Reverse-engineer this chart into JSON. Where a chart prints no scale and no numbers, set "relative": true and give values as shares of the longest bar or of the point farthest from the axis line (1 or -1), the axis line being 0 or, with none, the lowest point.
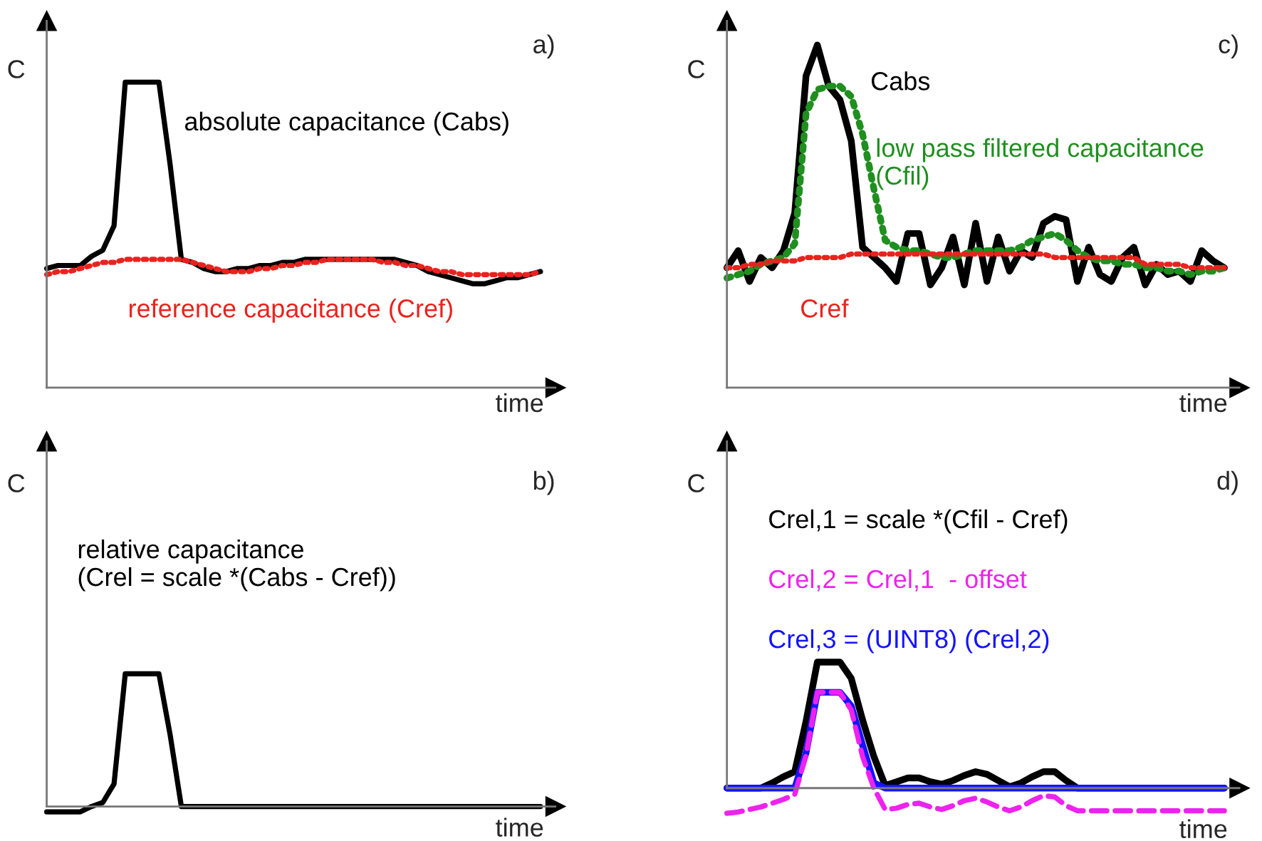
{
  "chart_data": [
    {
      "type": "line",
      "title": "a)",
      "xlabel": "time",
      "ylabel": "C",
      "relative": true,
      "tick_labels": false,
      "categories": [
        null,
        null,
        null,
        null,
        null,
        null,
        null,
        null,
        null,
        null,
        null,
        null,
        null,
        null,
        null,
        null,
        null,
        null,
        null,
        null,
        null,
        null,
        null,
        null,
        null,
        null,
        null,
        null,
        null,
        null,
        null,
        null,
        null,
        null,
        null,
        null,
        null,
        null,
        null,
        null,
        null,
        null,
        null,
        null,
        null
      ],
      "series": [
        {
          "name": "absolute capacitance (Cabs)",
          "color": "#000000",
          "line_style": "solid",
          "values": [
            0.39,
            0.4,
            0.4,
            0.4,
            0.43,
            0.45,
            0.53,
            1,
            1,
            1,
            1,
            0.73,
            0.42,
            0.41,
            0.39,
            0.38,
            0.38,
            0.39,
            0.39,
            0.4,
            0.4,
            0.41,
            0.41,
            0.42,
            0.42,
            0.42,
            0.42,
            0.42,
            0.42,
            0.42,
            0.42,
            0.42,
            0.41,
            0.4,
            0.38,
            0.37,
            0.36,
            0.35,
            0.34,
            0.34,
            0.35,
            0.36,
            0.36,
            0.37,
            0.38
          ]
        },
        {
          "name": "reference capacitance (Cref)",
          "color": "#e8231e",
          "line_style": "dotted",
          "values": [
            0.37,
            0.38,
            0.38,
            0.39,
            0.4,
            0.41,
            0.41,
            0.42,
            0.42,
            0.42,
            0.42,
            0.42,
            0.42,
            0.41,
            0.4,
            0.39,
            0.38,
            0.38,
            0.38,
            0.39,
            0.39,
            0.4,
            0.4,
            0.41,
            0.41,
            0.42,
            0.42,
            0.42,
            0.42,
            0.42,
            0.41,
            0.41,
            0.4,
            0.4,
            0.39,
            0.38,
            0.38,
            0.37,
            0.37,
            0.37,
            0.37,
            0.37,
            0.37,
            0.37,
            0.38
          ]
        }
      ]
    },
    {
      "type": "line",
      "title": "c)",
      "xlabel": "time",
      "ylabel": "C",
      "relative": true,
      "tick_labels": false,
      "categories": [
        null,
        null,
        null,
        null,
        null,
        null,
        null,
        null,
        null,
        null,
        null,
        null,
        null,
        null,
        null,
        null,
        null,
        null,
        null,
        null,
        null,
        null,
        null,
        null,
        null,
        null,
        null,
        null,
        null,
        null,
        null,
        null,
        null,
        null,
        null,
        null,
        null,
        null,
        null,
        null,
        null,
        null,
        null,
        null,
        null
      ],
      "series": [
        {
          "name": "Cabs",
          "color": "#000000",
          "line_style": "solid",
          "values": [
            0.35,
            0.4,
            0.31,
            0.38,
            0.35,
            0.4,
            0.51,
            0.91,
            1,
            0.88,
            0.84,
            0.72,
            0.41,
            0.38,
            0.35,
            0.31,
            0.45,
            0.45,
            0.3,
            0.35,
            0.44,
            0.3,
            0.48,
            0.31,
            0.44,
            0.34,
            0.4,
            0.38,
            0.48,
            0.5,
            0.49,
            0.31,
            0.41,
            0.33,
            0.31,
            0.38,
            0.41,
            0.3,
            0.36,
            0.33,
            0.34,
            0.31,
            0.4,
            0.37,
            0.35
          ]
        },
        {
          "name": "low pass filtered capacitance\n(Cfil)",
          "color": "#1f8f1f",
          "line_style": "dotted",
          "values": [
            0.32,
            0.33,
            0.34,
            0.36,
            0.37,
            0.38,
            0.42,
            0.8,
            0.87,
            0.88,
            0.88,
            0.85,
            0.74,
            0.58,
            0.43,
            0.41,
            0.4,
            0.4,
            0.39,
            0.38,
            0.38,
            0.39,
            0.4,
            0.4,
            0.4,
            0.4,
            0.41,
            0.43,
            0.44,
            0.45,
            0.43,
            0.4,
            0.38,
            0.37,
            0.37,
            0.36,
            0.36,
            0.35,
            0.35,
            0.34,
            0.34,
            0.33,
            0.34,
            0.34,
            0.35
          ]
        },
        {
          "name": "Cref",
          "color": "#e8231e",
          "line_style": "dotted",
          "values": [
            0.35,
            0.35,
            0.36,
            0.36,
            0.37,
            0.37,
            0.37,
            0.38,
            0.38,
            0.38,
            0.38,
            0.39,
            0.39,
            0.39,
            0.39,
            0.39,
            0.39,
            0.39,
            0.39,
            0.39,
            0.39,
            0.39,
            0.39,
            0.39,
            0.39,
            0.39,
            0.39,
            0.39,
            0.39,
            0.38,
            0.38,
            0.38,
            0.38,
            0.38,
            0.38,
            0.38,
            0.38,
            0.36,
            0.36,
            0.36,
            0.36,
            0.35,
            0.35,
            0.35,
            0.35
          ]
        }
      ]
    },
    {
      "type": "line",
      "title": "b)",
      "xlabel": "time",
      "ylabel": "C",
      "relative": true,
      "tick_labels": false,
      "categories": [
        null,
        null,
        null,
        null,
        null,
        null,
        null,
        null,
        null,
        null,
        null,
        null,
        null,
        null,
        null,
        null,
        null,
        null,
        null,
        null,
        null,
        null,
        null,
        null,
        null,
        null,
        null,
        null,
        null,
        null,
        null,
        null,
        null,
        null,
        null,
        null,
        null,
        null,
        null,
        null,
        null,
        null,
        null,
        null,
        null
      ],
      "series": [
        {
          "name": "relative capacitance\n(Crel = scale *(Cabs - Cref))",
          "color": "#000000",
          "line_style": "solid",
          "values": [
            -0.04,
            -0.04,
            -0.04,
            -0.04,
            0.0,
            0.03,
            0.17,
            1,
            1,
            1,
            1,
            0.54,
            0,
            0,
            0,
            0,
            0,
            0,
            0,
            0,
            0,
            0,
            0,
            0,
            0,
            0,
            0,
            0,
            0,
            0,
            0,
            0,
            0,
            0,
            0,
            0,
            0,
            0,
            0,
            0,
            0,
            0,
            0,
            0,
            0
          ]
        }
      ]
    },
    {
      "type": "line",
      "title": "d)",
      "xlabel": "time",
      "ylabel": "C",
      "relative": true,
      "tick_labels": false,
      "categories": [
        null,
        null,
        null,
        null,
        null,
        null,
        null,
        null,
        null,
        null,
        null,
        null,
        null,
        null,
        null,
        null,
        null,
        null,
        null,
        null,
        null,
        null,
        null,
        null,
        null,
        null,
        null,
        null,
        null,
        null,
        null,
        null,
        null,
        null,
        null,
        null,
        null,
        null,
        null,
        null,
        null,
        null,
        null,
        null,
        null
      ],
      "series": [
        {
          "name": "Crel,1 = scale *(Cfil - Cref)",
          "color": "#000000",
          "line_style": "solid",
          "values": [
            0,
            0,
            0,
            0,
            0.04,
            0.09,
            0.13,
            0.53,
            1,
            1,
            1,
            0.87,
            0.54,
            0.25,
            0.02,
            0.05,
            0.08,
            0.08,
            0.05,
            0.03,
            0.06,
            0.1,
            0.13,
            0.11,
            0.06,
            0.01,
            0.04,
            0.09,
            0.13,
            0.13,
            0.06,
            0,
            0,
            0,
            0,
            0,
            0,
            0,
            0,
            0,
            0,
            0,
            0,
            0,
            0
          ]
        },
        {
          "name": "Crel,3 = (UINT8) (Crel,2)",
          "color": "#1414ff",
          "line_style": "solid",
          "values": [
            0,
            0,
            0,
            0,
            0,
            0,
            0,
            0.28,
            0.76,
            0.76,
            0.76,
            0.65,
            0.34,
            0.04,
            0,
            0,
            0,
            0,
            0,
            0,
            0,
            0,
            0,
            0,
            0,
            0,
            0,
            0,
            0,
            0,
            0,
            0,
            0,
            0,
            0,
            0,
            0,
            0,
            0,
            0,
            0,
            0,
            0,
            0,
            0
          ]
        },
        {
          "name": "Crel,2 = Crel,1  - offset",
          "color": "#ee22ee",
          "line_style": "dashed",
          "values": [
            -0.2,
            -0.19,
            -0.17,
            -0.15,
            -0.12,
            -0.09,
            -0.05,
            0.26,
            0.76,
            0.76,
            0.76,
            0.62,
            0.25,
            0.0,
            -0.17,
            -0.16,
            -0.13,
            -0.12,
            -0.15,
            -0.17,
            -0.14,
            -0.1,
            -0.08,
            -0.11,
            -0.15,
            -0.18,
            -0.15,
            -0.1,
            -0.06,
            -0.07,
            -0.14,
            -0.18,
            -0.18,
            -0.18,
            -0.18,
            -0.18,
            -0.18,
            -0.18,
            -0.18,
            -0.18,
            -0.18,
            -0.18,
            -0.18,
            -0.18,
            -0.18
          ]
        }
      ]
    }
  ]
}
